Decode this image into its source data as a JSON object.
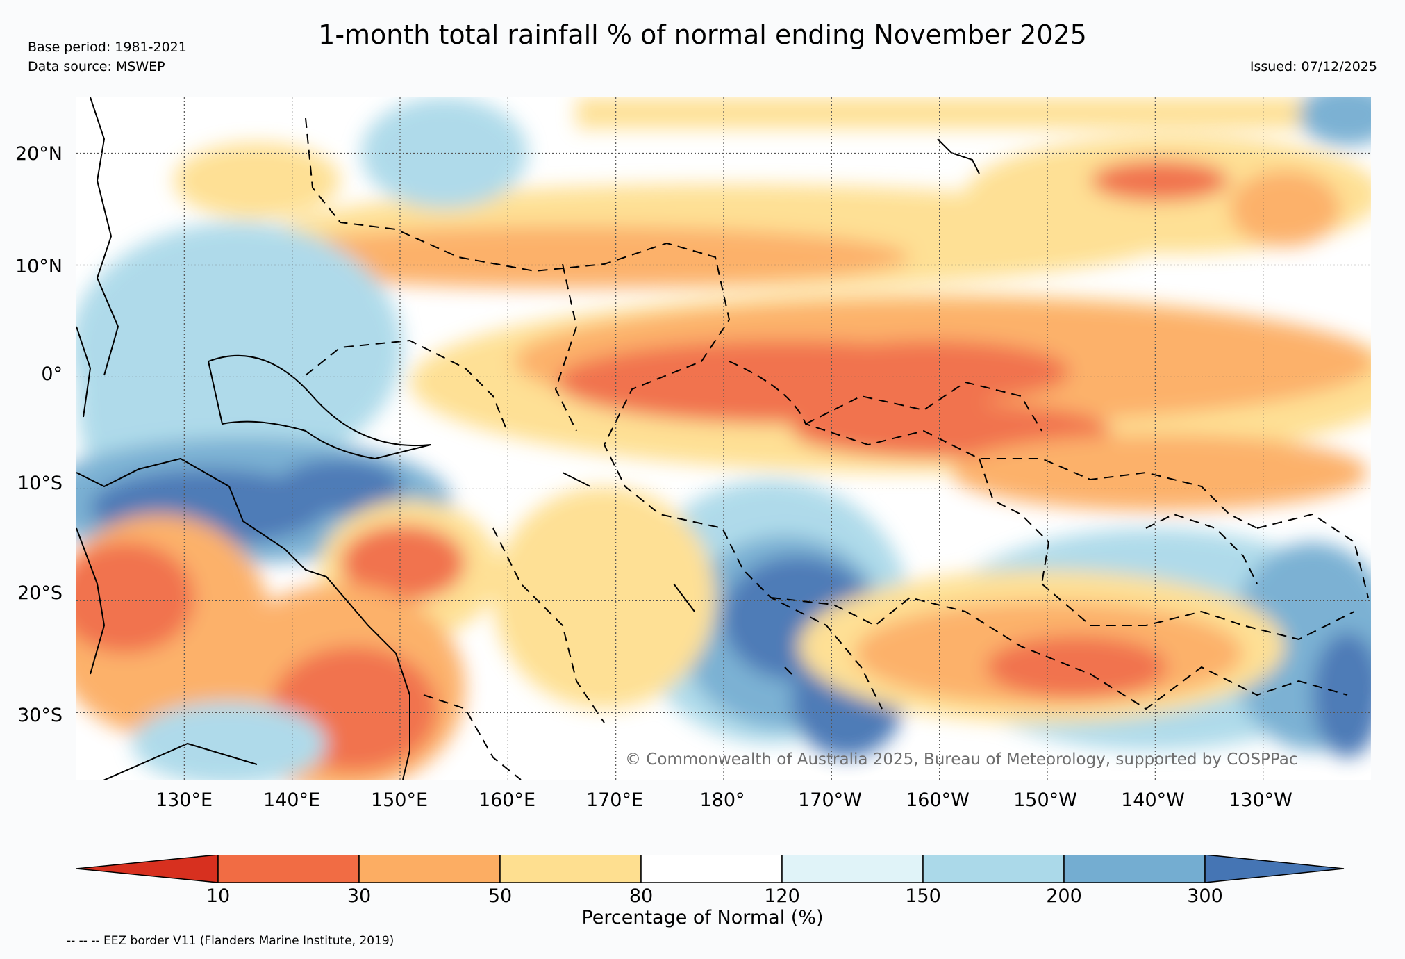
{
  "header": {
    "title": "1-month total rainfall % of normal ending November 2025",
    "base_period": "Base period: 1981-2021",
    "data_source": "Data source: MSWEP",
    "issued": "Issued: 07/12/2025"
  },
  "map": {
    "lat_labels": [
      "20°N",
      "10°N",
      "0°",
      "10°S",
      "20°S",
      "30°S"
    ],
    "lon_labels": [
      "130°E",
      "140°E",
      "150°E",
      "160°E",
      "170°E",
      "180°",
      "170°W",
      "160°W",
      "150°W",
      "140°W",
      "130°W"
    ],
    "copyright": "© Commonwealth of Australia 2025, Bureau of Meteorology, supported by COSPPac",
    "extent_lon": [
      120,
      240
    ],
    "extent_lat": [
      -36,
      25
    ],
    "grid_lons": [
      130,
      140,
      150,
      160,
      170,
      180,
      190,
      200,
      210,
      220,
      230
    ],
    "grid_lats": [
      20,
      10,
      0,
      -10,
      -20,
      -30
    ]
  },
  "colorbar": {
    "ticks": [
      "10",
      "30",
      "50",
      "80",
      "120",
      "150",
      "200",
      "300"
    ],
    "colors": [
      "#d7301f",
      "#f16c44",
      "#fcad63",
      "#fedf90",
      "#ffffff",
      "#e0f3f8",
      "#abd9e9",
      "#74add1",
      "#4575b4"
    ],
    "label": "Percentage of Normal (%)"
  },
  "footer": {
    "eez_note": "-- -- -- EEZ border V11 (Flanders Marine Institute, 2019)"
  }
}
